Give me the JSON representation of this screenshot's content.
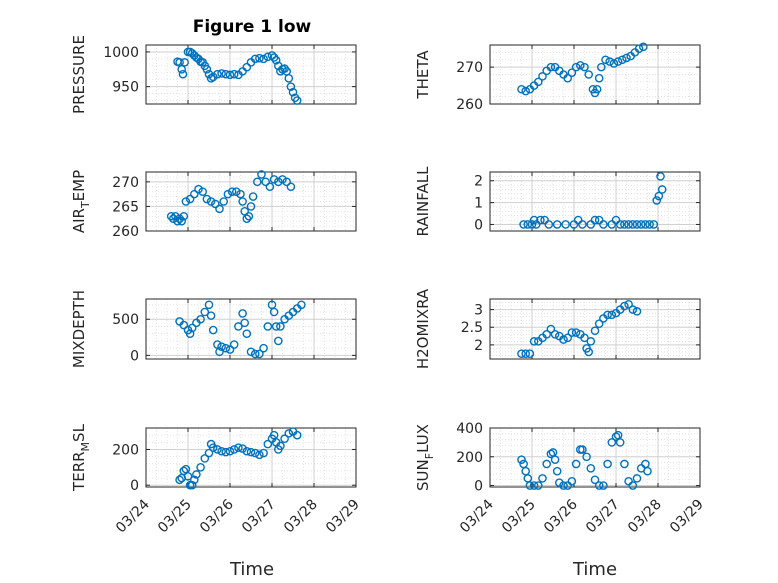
{
  "figure_title": "Figure 1 low",
  "xlabel": "Time",
  "x_ticks": [
    "03/24",
    "03/25",
    "03/26",
    "03/27",
    "03/28",
    "03/29"
  ],
  "marker_color": "#0072BD",
  "chart_data": [
    {
      "type": "scatter",
      "ylabel": "PRESSURE",
      "ylim": [
        925,
        1010
      ],
      "yticks": [
        950,
        1000
      ],
      "grid": true,
      "points": [
        [
          0.75,
          986
        ],
        [
          0.8,
          985
        ],
        [
          0.85,
          975
        ],
        [
          0.88,
          968
        ],
        [
          0.92,
          985
        ],
        [
          1.0,
          1000
        ],
        [
          1.05,
          1000
        ],
        [
          1.1,
          998
        ],
        [
          1.15,
          995
        ],
        [
          1.2,
          992
        ],
        [
          1.25,
          990
        ],
        [
          1.3,
          986
        ],
        [
          1.35,
          985
        ],
        [
          1.4,
          980
        ],
        [
          1.45,
          975
        ],
        [
          1.5,
          968
        ],
        [
          1.55,
          962
        ],
        [
          1.6,
          964
        ],
        [
          1.7,
          968
        ],
        [
          1.8,
          969
        ],
        [
          1.9,
          968
        ],
        [
          2.0,
          967
        ],
        [
          2.1,
          968
        ],
        [
          2.2,
          967
        ],
        [
          2.3,
          972
        ],
        [
          2.4,
          978
        ],
        [
          2.5,
          985
        ],
        [
          2.6,
          990
        ],
        [
          2.7,
          991
        ],
        [
          2.8,
          990
        ],
        [
          2.9,
          993
        ],
        [
          3.0,
          995
        ],
        [
          3.05,
          992
        ],
        [
          3.1,
          988
        ],
        [
          3.15,
          980
        ],
        [
          3.2,
          972
        ],
        [
          3.25,
          975
        ],
        [
          3.3,
          976
        ],
        [
          3.35,
          972
        ],
        [
          3.4,
          962
        ],
        [
          3.45,
          950
        ],
        [
          3.5,
          942
        ],
        [
          3.55,
          934
        ],
        [
          3.6,
          930
        ]
      ]
    },
    {
      "type": "scatter",
      "ylabel": "THETA",
      "ylim": [
        260,
        276
      ],
      "yticks": [
        260,
        270
      ],
      "grid": true,
      "points": [
        [
          0.75,
          264
        ],
        [
          0.85,
          263.5
        ],
        [
          0.95,
          264
        ],
        [
          1.05,
          265
        ],
        [
          1.15,
          266
        ],
        [
          1.25,
          267.5
        ],
        [
          1.35,
          269
        ],
        [
          1.45,
          270
        ],
        [
          1.55,
          270
        ],
        [
          1.65,
          269
        ],
        [
          1.75,
          268
        ],
        [
          1.85,
          267
        ],
        [
          1.95,
          268.5
        ],
        [
          2.05,
          270
        ],
        [
          2.15,
          270.5
        ],
        [
          2.25,
          270
        ],
        [
          2.35,
          268
        ],
        [
          2.45,
          264
        ],
        [
          2.5,
          263
        ],
        [
          2.55,
          264
        ],
        [
          2.6,
          267
        ],
        [
          2.65,
          270
        ],
        [
          2.75,
          272
        ],
        [
          2.85,
          271.5
        ],
        [
          2.95,
          271
        ],
        [
          3.05,
          271.5
        ],
        [
          3.15,
          272
        ],
        [
          3.25,
          272.5
        ],
        [
          3.35,
          273
        ],
        [
          3.45,
          274
        ],
        [
          3.55,
          275
        ],
        [
          3.65,
          275.5
        ]
      ]
    },
    {
      "type": "scatter",
      "ylabel": "AIR_TEMP",
      "ylim": [
        260,
        272
      ],
      "yticks": [
        260,
        265,
        270
      ],
      "grid": true,
      "points": [
        [
          0.6,
          263
        ],
        [
          0.65,
          262.5
        ],
        [
          0.7,
          263
        ],
        [
          0.75,
          262
        ],
        [
          0.8,
          262.5
        ],
        [
          0.85,
          262
        ],
        [
          0.9,
          263
        ],
        [
          0.95,
          266
        ],
        [
          1.05,
          266.5
        ],
        [
          1.15,
          267.5
        ],
        [
          1.25,
          268.5
        ],
        [
          1.35,
          268
        ],
        [
          1.45,
          266.5
        ],
        [
          1.55,
          266
        ],
        [
          1.65,
          265.5
        ],
        [
          1.75,
          264.5
        ],
        [
          1.85,
          266
        ],
        [
          1.95,
          267.5
        ],
        [
          2.05,
          268
        ],
        [
          2.15,
          268
        ],
        [
          2.25,
          267.5
        ],
        [
          2.3,
          266
        ],
        [
          2.35,
          264
        ],
        [
          2.4,
          262.5
        ],
        [
          2.45,
          263
        ],
        [
          2.5,
          265
        ],
        [
          2.55,
          267
        ],
        [
          2.65,
          270
        ],
        [
          2.75,
          271.5
        ],
        [
          2.85,
          270
        ],
        [
          2.95,
          269
        ],
        [
          3.05,
          270.5
        ],
        [
          3.15,
          270
        ],
        [
          3.25,
          270.5
        ],
        [
          3.35,
          270
        ],
        [
          3.45,
          269
        ]
      ]
    },
    {
      "type": "scatter",
      "ylabel": "RAINFALL",
      "ylim": [
        -0.3,
        2.4
      ],
      "yticks": [
        0,
        1,
        2
      ],
      "grid": true,
      "points": [
        [
          0.8,
          0
        ],
        [
          0.9,
          0
        ],
        [
          1.0,
          0
        ],
        [
          1.05,
          0.2
        ],
        [
          1.1,
          0
        ],
        [
          1.2,
          0.2
        ],
        [
          1.3,
          0.2
        ],
        [
          1.4,
          0
        ],
        [
          1.6,
          0
        ],
        [
          1.8,
          0
        ],
        [
          2.0,
          0
        ],
        [
          2.1,
          0.2
        ],
        [
          2.2,
          0
        ],
        [
          2.4,
          0
        ],
        [
          2.5,
          0.2
        ],
        [
          2.6,
          0.2
        ],
        [
          2.7,
          0
        ],
        [
          2.9,
          0
        ],
        [
          3.0,
          0.2
        ],
        [
          3.1,
          0
        ],
        [
          3.2,
          0
        ],
        [
          3.3,
          0
        ],
        [
          3.4,
          0
        ],
        [
          3.5,
          0
        ],
        [
          3.6,
          0
        ],
        [
          3.7,
          0
        ],
        [
          3.8,
          0
        ],
        [
          3.9,
          0
        ],
        [
          3.97,
          1.1
        ],
        [
          4.02,
          1.3
        ],
        [
          4.06,
          2.2
        ],
        [
          4.1,
          1.6
        ]
      ]
    },
    {
      "type": "scatter",
      "ylabel": "MIXDEPTH",
      "ylim": [
        -50,
        780
      ],
      "yticks": [
        0,
        500
      ],
      "grid": true,
      "points": [
        [
          0.8,
          470
        ],
        [
          0.9,
          420
        ],
        [
          1.0,
          350
        ],
        [
          1.05,
          300
        ],
        [
          1.1,
          380
        ],
        [
          1.2,
          450
        ],
        [
          1.3,
          500
        ],
        [
          1.4,
          600
        ],
        [
          1.5,
          700
        ],
        [
          1.55,
          550
        ],
        [
          1.6,
          350
        ],
        [
          1.7,
          150
        ],
        [
          1.75,
          50
        ],
        [
          1.8,
          120
        ],
        [
          1.9,
          100
        ],
        [
          2.0,
          80
        ],
        [
          2.1,
          150
        ],
        [
          2.2,
          400
        ],
        [
          2.3,
          580
        ],
        [
          2.35,
          450
        ],
        [
          2.4,
          300
        ],
        [
          2.5,
          50
        ],
        [
          2.6,
          20
        ],
        [
          2.7,
          20
        ],
        [
          2.8,
          100
        ],
        [
          2.9,
          400
        ],
        [
          3.0,
          700
        ],
        [
          3.05,
          600
        ],
        [
          3.1,
          400
        ],
        [
          3.15,
          200
        ],
        [
          3.2,
          400
        ],
        [
          3.3,
          500
        ],
        [
          3.4,
          550
        ],
        [
          3.5,
          600
        ],
        [
          3.6,
          650
        ],
        [
          3.7,
          700
        ]
      ]
    },
    {
      "type": "scatter",
      "ylabel": "H2OMIXRA",
      "ylim": [
        1.6,
        3.3
      ],
      "yticks": [
        2,
        2.5,
        3
      ],
      "grid": true,
      "points": [
        [
          0.75,
          1.75
        ],
        [
          0.85,
          1.75
        ],
        [
          0.95,
          1.75
        ],
        [
          1.05,
          2.1
        ],
        [
          1.15,
          2.1
        ],
        [
          1.25,
          2.2
        ],
        [
          1.35,
          2.3
        ],
        [
          1.45,
          2.45
        ],
        [
          1.55,
          2.3
        ],
        [
          1.65,
          2.25
        ],
        [
          1.75,
          2.15
        ],
        [
          1.85,
          2.2
        ],
        [
          1.95,
          2.35
        ],
        [
          2.05,
          2.35
        ],
        [
          2.15,
          2.3
        ],
        [
          2.25,
          2.2
        ],
        [
          2.3,
          1.9
        ],
        [
          2.35,
          1.8
        ],
        [
          2.4,
          2.1
        ],
        [
          2.5,
          2.4
        ],
        [
          2.6,
          2.6
        ],
        [
          2.7,
          2.75
        ],
        [
          2.8,
          2.85
        ],
        [
          2.9,
          2.85
        ],
        [
          3.0,
          2.9
        ],
        [
          3.1,
          3.0
        ],
        [
          3.2,
          3.1
        ],
        [
          3.3,
          3.15
        ],
        [
          3.4,
          3.0
        ],
        [
          3.5,
          2.95
        ]
      ]
    },
    {
      "type": "scatter",
      "ylabel": "TERR_MSL",
      "ylim": [
        -10,
        320
      ],
      "yticks": [
        0,
        200
      ],
      "grid": true,
      "points": [
        [
          0.8,
          30
        ],
        [
          0.85,
          40
        ],
        [
          0.9,
          80
        ],
        [
          0.95,
          90
        ],
        [
          1.0,
          50
        ],
        [
          1.05,
          0
        ],
        [
          1.1,
          0
        ],
        [
          1.15,
          30
        ],
        [
          1.2,
          60
        ],
        [
          1.3,
          100
        ],
        [
          1.4,
          150
        ],
        [
          1.5,
          180
        ],
        [
          1.55,
          230
        ],
        [
          1.6,
          210
        ],
        [
          1.7,
          200
        ],
        [
          1.8,
          190
        ],
        [
          1.9,
          185
        ],
        [
          2.0,
          190
        ],
        [
          2.1,
          200
        ],
        [
          2.2,
          210
        ],
        [
          2.3,
          205
        ],
        [
          2.4,
          190
        ],
        [
          2.5,
          185
        ],
        [
          2.6,
          180
        ],
        [
          2.7,
          170
        ],
        [
          2.8,
          180
        ],
        [
          2.9,
          230
        ],
        [
          3.0,
          260
        ],
        [
          3.05,
          280
        ],
        [
          3.1,
          240
        ],
        [
          3.15,
          200
        ],
        [
          3.2,
          220
        ],
        [
          3.3,
          260
        ],
        [
          3.4,
          290
        ],
        [
          3.5,
          300
        ],
        [
          3.6,
          280
        ]
      ]
    },
    {
      "type": "scatter",
      "ylabel": "SUN_FLUX",
      "ylim": [
        -10,
        400
      ],
      "yticks": [
        0,
        200,
        400
      ],
      "grid": true,
      "points": [
        [
          0.75,
          180
        ],
        [
          0.8,
          150
        ],
        [
          0.85,
          100
        ],
        [
          0.9,
          50
        ],
        [
          0.95,
          0
        ],
        [
          1.05,
          0
        ],
        [
          1.15,
          0
        ],
        [
          1.25,
          50
        ],
        [
          1.35,
          150
        ],
        [
          1.45,
          220
        ],
        [
          1.5,
          230
        ],
        [
          1.55,
          180
        ],
        [
          1.6,
          100
        ],
        [
          1.65,
          20
        ],
        [
          1.75,
          0
        ],
        [
          1.85,
          0
        ],
        [
          1.95,
          30
        ],
        [
          2.05,
          150
        ],
        [
          2.15,
          250
        ],
        [
          2.2,
          250
        ],
        [
          2.3,
          200
        ],
        [
          2.4,
          120
        ],
        [
          2.5,
          40
        ],
        [
          2.6,
          0
        ],
        [
          2.7,
          0
        ],
        [
          2.8,
          150
        ],
        [
          2.9,
          300
        ],
        [
          3.0,
          340
        ],
        [
          3.05,
          350
        ],
        [
          3.1,
          300
        ],
        [
          3.2,
          150
        ],
        [
          3.3,
          30
        ],
        [
          3.4,
          0
        ],
        [
          3.5,
          50
        ],
        [
          3.6,
          120
        ],
        [
          3.7,
          150
        ],
        [
          3.75,
          100
        ]
      ]
    }
  ]
}
